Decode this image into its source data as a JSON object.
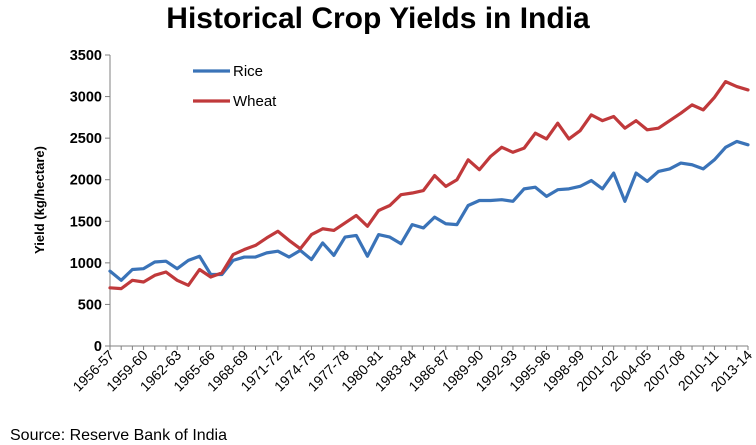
{
  "chart_data": {
    "type": "line",
    "title": "Historical Crop Yields in India",
    "ylabel": "Yield (kg/hectare)",
    "xlabel": "",
    "ylim": [
      0,
      3500
    ],
    "yticks": [
      0,
      500,
      1000,
      1500,
      2000,
      2500,
      3000,
      3500
    ],
    "grid": false,
    "legend_position": "top-left",
    "source": "Source:  Reserve Bank of India",
    "x": [
      "1956-57",
      "1957-58",
      "1958-59",
      "1959-60",
      "1960-61",
      "1961-62",
      "1962-63",
      "1963-64",
      "1964-65",
      "1965-66",
      "1966-67",
      "1967-68",
      "1968-69",
      "1969-70",
      "1970-71",
      "1971-72",
      "1972-73",
      "1973-74",
      "1974-75",
      "1975-76",
      "1976-77",
      "1977-78",
      "1978-79",
      "1979-80",
      "1980-81",
      "1981-82",
      "1982-83",
      "1983-84",
      "1984-85",
      "1985-86",
      "1986-87",
      "1987-88",
      "1988-89",
      "1989-90",
      "1990-91",
      "1991-92",
      "1992-93",
      "1993-94",
      "1994-95",
      "1995-96",
      "1996-97",
      "1997-98",
      "1998-99",
      "1999-00",
      "2000-01",
      "2001-02",
      "2002-03",
      "2003-04",
      "2004-05",
      "2005-06",
      "2006-07",
      "2007-08",
      "2008-09",
      "2009-10",
      "2010-11",
      "2011-12",
      "2012-13",
      "2013-14"
    ],
    "xtick_labels": [
      "1956-57",
      "1959-60",
      "1962-63",
      "1965-66",
      "1968-69",
      "1971-72",
      "1974-75",
      "1977-78",
      "1980-81",
      "1983-84",
      "1986-87",
      "1989-90",
      "1992-93",
      "1995-96",
      "1998-99",
      "2001-02",
      "2004-05",
      "2007-08",
      "2010-11",
      "2013-14"
    ],
    "series": [
      {
        "name": "Rice",
        "color": "#3a73b8",
        "values": [
          900,
          790,
          920,
          930,
          1010,
          1020,
          930,
          1030,
          1080,
          860,
          860,
          1030,
          1070,
          1070,
          1120,
          1140,
          1070,
          1150,
          1040,
          1240,
          1090,
          1310,
          1330,
          1080,
          1340,
          1310,
          1230,
          1460,
          1420,
          1550,
          1470,
          1460,
          1690,
          1750,
          1750,
          1760,
          1740,
          1890,
          1910,
          1800,
          1880,
          1890,
          1920,
          1990,
          1890,
          2080,
          1740,
          2080,
          1980,
          2100,
          2130,
          2200,
          2180,
          2130,
          2240,
          2390,
          2460,
          2420
        ]
      },
      {
        "name": "Wheat",
        "color": "#c0393b",
        "values": [
          700,
          690,
          790,
          770,
          850,
          890,
          790,
          730,
          920,
          830,
          880,
          1100,
          1160,
          1210,
          1300,
          1380,
          1270,
          1170,
          1340,
          1410,
          1390,
          1480,
          1570,
          1440,
          1630,
          1690,
          1820,
          1840,
          1870,
          2050,
          1920,
          2000,
          2240,
          2120,
          2280,
          2390,
          2330,
          2380,
          2560,
          2490,
          2680,
          2490,
          2590,
          2780,
          2710,
          2760,
          2620,
          2710,
          2600,
          2620,
          2710,
          2800,
          2900,
          2840,
          2990,
          3180,
          3120,
          3080
        ]
      }
    ]
  }
}
